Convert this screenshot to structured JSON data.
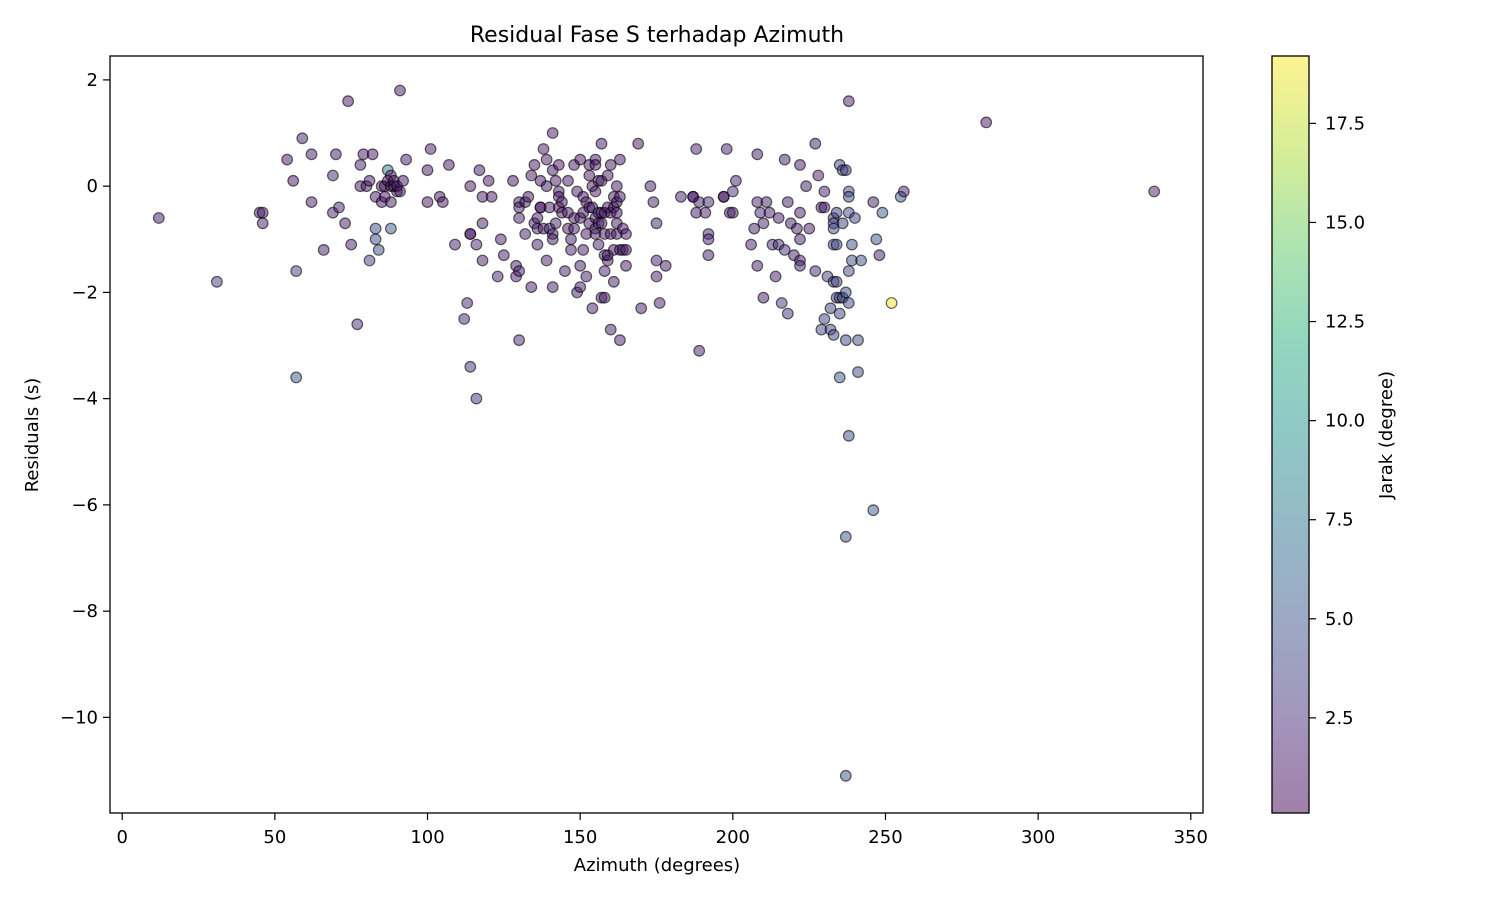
{
  "chart_data": {
    "type": "scatter",
    "title": "Residual Fase S terhadap Azimuth",
    "xlabel": "Azimuth (degrees)",
    "ylabel": "Residuals (s)",
    "xlim": [
      -4,
      354
    ],
    "ylim": [
      -11.8,
      2.45
    ],
    "x_ticks": [
      0,
      50,
      100,
      150,
      200,
      250,
      300,
      350
    ],
    "y_ticks": [
      2,
      0,
      -2,
      -4,
      -6,
      -8,
      -10
    ],
    "x_tick_labels": [
      "0",
      "50",
      "100",
      "150",
      "200",
      "250",
      "300",
      "350"
    ],
    "y_tick_labels": [
      "2",
      "0",
      "−2",
      "−4",
      "−6",
      "−8",
      "−10"
    ],
    "grid": false,
    "marker_alpha": 0.5,
    "colormap": "viridis",
    "colorbar": {
      "label": "Jarak (degree)",
      "range": [
        0.1,
        19.2
      ],
      "ticks": [
        2.5,
        5.0,
        7.5,
        10.0,
        12.5,
        15.0,
        17.5
      ],
      "tick_labels": [
        "2.5",
        "5.0",
        "7.5",
        "10.0",
        "12.5",
        "15.0",
        "17.5"
      ]
    },
    "points": [
      [
        12,
        -0.6,
        1.2
      ],
      [
        31,
        -1.8,
        3.5
      ],
      [
        45,
        -0.5,
        1.5
      ],
      [
        46,
        -0.5,
        1.5
      ],
      [
        46,
        -0.7,
        1.5
      ],
      [
        54,
        0.5,
        1.2
      ],
      [
        56,
        0.1,
        1.2
      ],
      [
        57,
        -1.6,
        3.5
      ],
      [
        57,
        -3.6,
        5.5
      ],
      [
        59,
        0.9,
        1.5
      ],
      [
        62,
        0.6,
        1.5
      ],
      [
        62,
        -0.3,
        1.5
      ],
      [
        66,
        -1.2,
        1.5
      ],
      [
        69,
        0.2,
        2.0
      ],
      [
        69,
        -0.5,
        2.0
      ],
      [
        70,
        0.6,
        1.2
      ],
      [
        71,
        -0.4,
        2.0
      ],
      [
        73,
        -0.7,
        1.5
      ],
      [
        74,
        1.6,
        1.2
      ],
      [
        75,
        -1.1,
        1.5
      ],
      [
        77,
        -2.6,
        2.5
      ],
      [
        78,
        0.4,
        1.5
      ],
      [
        78,
        0.0,
        1.2
      ],
      [
        79,
        0.6,
        1.2
      ],
      [
        80,
        0.0,
        1.2
      ],
      [
        81,
        0.1,
        1.2
      ],
      [
        81,
        -1.4,
        3.5
      ],
      [
        82,
        0.6,
        1.2
      ],
      [
        83,
        -0.2,
        1.5
      ],
      [
        83,
        -0.8,
        4.5
      ],
      [
        83,
        -1.0,
        4.5
      ],
      [
        84,
        -1.2,
        4.5
      ],
      [
        85,
        -0.3,
        1.2
      ],
      [
        85,
        0.0,
        1.2
      ],
      [
        86,
        -0.2,
        1.2
      ],
      [
        86,
        0.0,
        1.2
      ],
      [
        87,
        0.3,
        8.0
      ],
      [
        87,
        0.1,
        1.2
      ],
      [
        88,
        0.2,
        1.2
      ],
      [
        88,
        0.0,
        1.2
      ],
      [
        88,
        -0.3,
        1.2
      ],
      [
        88,
        -0.8,
        5.5
      ],
      [
        89,
        0.0,
        1.2
      ],
      [
        89,
        0.1,
        1.2
      ],
      [
        90,
        -0.1,
        1.2
      ],
      [
        90,
        0.0,
        1.2
      ],
      [
        91,
        1.8,
        1.2
      ],
      [
        91,
        -0.1,
        1.2
      ],
      [
        92,
        0.1,
        1.2
      ],
      [
        93,
        0.5,
        1.2
      ],
      [
        100,
        0.3,
        1.2
      ],
      [
        100,
        -0.3,
        1.2
      ],
      [
        101,
        0.7,
        1.2
      ],
      [
        104,
        -0.2,
        1.2
      ],
      [
        105,
        -0.3,
        1.2
      ],
      [
        107,
        0.4,
        1.2
      ],
      [
        109,
        -1.1,
        1.5
      ],
      [
        112,
        -2.5,
        2.0
      ],
      [
        113,
        -2.2,
        2.0
      ],
      [
        114,
        0.0,
        1.2
      ],
      [
        114,
        -0.9,
        1.2
      ],
      [
        114,
        -0.9,
        1.2
      ],
      [
        114,
        -3.4,
        2.5
      ],
      [
        116,
        -1.1,
        2.0
      ],
      [
        116,
        -4.0,
        2.5
      ],
      [
        117,
        0.3,
        1.2
      ],
      [
        118,
        -1.4,
        1.5
      ],
      [
        118,
        -0.7,
        1.5
      ],
      [
        118,
        -0.2,
        1.5
      ],
      [
        120,
        0.1,
        1.2
      ],
      [
        121,
        -0.2,
        1.2
      ],
      [
        123,
        -1.7,
        1.5
      ],
      [
        124,
        -1.0,
        1.5
      ],
      [
        125,
        -1.3,
        1.5
      ],
      [
        128,
        0.1,
        1.2
      ],
      [
        129,
        -1.5,
        1.5
      ],
      [
        129,
        -1.7,
        1.5
      ],
      [
        130,
        -1.6,
        1.5
      ],
      [
        130,
        -2.9,
        2.0
      ],
      [
        130,
        -0.3,
        1.5
      ],
      [
        130,
        -0.4,
        1.5
      ],
      [
        130,
        -0.6,
        1.5
      ],
      [
        132,
        -0.9,
        1.5
      ],
      [
        132,
        -0.3,
        1.5
      ],
      [
        133,
        -0.2,
        1.2
      ],
      [
        134,
        0.2,
        1.2
      ],
      [
        134,
        -1.9,
        1.5
      ],
      [
        135,
        0.4,
        1.2
      ],
      [
        135,
        -0.7,
        1.5
      ],
      [
        136,
        -1.1,
        1.5
      ],
      [
        136,
        -0.6,
        1.5
      ],
      [
        136,
        -0.8,
        1.5
      ],
      [
        137,
        0.1,
        1.2
      ],
      [
        137,
        -0.4,
        1.2
      ],
      [
        137,
        -0.4,
        1.2
      ],
      [
        138,
        0.7,
        1.2
      ],
      [
        138,
        -0.8,
        1.5
      ],
      [
        139,
        0.5,
        1.2
      ],
      [
        139,
        0.0,
        1.2
      ],
      [
        139,
        -1.4,
        1.5
      ],
      [
        140,
        -0.8,
        1.5
      ],
      [
        140,
        -0.4,
        1.5
      ],
      [
        141,
        1.0,
        1.2
      ],
      [
        141,
        0.3,
        1.2
      ],
      [
        141,
        -0.9,
        1.5
      ],
      [
        141,
        -1.0,
        1.5
      ],
      [
        141,
        -1.9,
        1.5
      ],
      [
        142,
        0.1,
        1.2
      ],
      [
        142,
        -0.7,
        1.5
      ],
      [
        143,
        0.4,
        1.2
      ],
      [
        143,
        -0.1,
        1.2
      ],
      [
        143,
        -0.2,
        1.2
      ],
      [
        143,
        -0.4,
        1.2
      ],
      [
        144,
        -0.3,
        1.2
      ],
      [
        144,
        -0.5,
        1.2
      ],
      [
        145,
        -1.6,
        1.5
      ],
      [
        146,
        0.1,
        1.2
      ],
      [
        146,
        -0.5,
        1.2
      ],
      [
        146,
        -0.8,
        1.2
      ],
      [
        147,
        -1.0,
        1.5
      ],
      [
        147,
        -1.2,
        1.5
      ],
      [
        148,
        -0.8,
        1.2
      ],
      [
        148,
        -0.6,
        1.2
      ],
      [
        148,
        0.4,
        1.2
      ],
      [
        149,
        -2.0,
        1.5
      ],
      [
        149,
        -0.1,
        1.2
      ],
      [
        150,
        0.5,
        1.2
      ],
      [
        150,
        -0.6,
        1.2
      ],
      [
        150,
        -1.5,
        1.5
      ],
      [
        150,
        -1.9,
        1.5
      ],
      [
        151,
        -0.2,
        1.2
      ],
      [
        151,
        -0.5,
        1.2
      ],
      [
        151,
        -1.2,
        1.5
      ],
      [
        152,
        -0.3,
        1.2
      ],
      [
        152,
        -0.9,
        1.2
      ],
      [
        152,
        -1.7,
        1.5
      ],
      [
        153,
        0.4,
        1.2
      ],
      [
        153,
        0.2,
        1.2
      ],
      [
        153,
        -0.4,
        1.2
      ],
      [
        153,
        -0.7,
        1.2
      ],
      [
        154,
        0.0,
        1.2
      ],
      [
        154,
        -0.4,
        1.2
      ],
      [
        154,
        -2.3,
        1.5
      ],
      [
        155,
        0.5,
        1.2
      ],
      [
        155,
        0.4,
        1.2
      ],
      [
        155,
        -0.1,
        1.2
      ],
      [
        155,
        -0.6,
        1.2
      ],
      [
        155,
        -0.8,
        1.2
      ],
      [
        155,
        -0.9,
        1.2
      ],
      [
        156,
        0.1,
        1.2
      ],
      [
        156,
        -0.5,
        1.2
      ],
      [
        156,
        -0.7,
        1.2
      ],
      [
        156,
        -1.1,
        1.5
      ],
      [
        157,
        0.8,
        1.2
      ],
      [
        157,
        0.1,
        1.2
      ],
      [
        157,
        -0.5,
        1.2
      ],
      [
        157,
        -0.7,
        1.2
      ],
      [
        157,
        -2.1,
        1.5
      ],
      [
        158,
        -1.6,
        1.5
      ],
      [
        158,
        -2.1,
        1.5
      ],
      [
        158,
        -1.3,
        1.2
      ],
      [
        158,
        -0.5,
        1.2
      ],
      [
        158,
        -0.9,
        1.2
      ],
      [
        159,
        0.2,
        1.2
      ],
      [
        159,
        -0.4,
        1.2
      ],
      [
        159,
        -1.4,
        1.2
      ],
      [
        159,
        -1.3,
        1.2
      ],
      [
        160,
        0.4,
        1.2
      ],
      [
        160,
        -0.5,
        1.2
      ],
      [
        160,
        -0.9,
        1.2
      ],
      [
        160,
        -2.7,
        1.5
      ],
      [
        161,
        -0.2,
        1.2
      ],
      [
        161,
        -0.4,
        1.2
      ],
      [
        161,
        -1.8,
        1.5
      ],
      [
        161,
        -1.2,
        1.2
      ],
      [
        162,
        -0.3,
        1.2
      ],
      [
        162,
        -0.5,
        1.2
      ],
      [
        162,
        0.0,
        1.2
      ],
      [
        162,
        -0.7,
        1.2
      ],
      [
        162,
        -0.9,
        1.2
      ],
      [
        163,
        0.5,
        1.2
      ],
      [
        163,
        -0.2,
        1.2
      ],
      [
        163,
        -1.2,
        1.2
      ],
      [
        163,
        -2.9,
        1.5
      ],
      [
        164,
        -0.8,
        1.2
      ],
      [
        164,
        -1.2,
        1.2
      ],
      [
        165,
        -0.9,
        1.2
      ],
      [
        165,
        -1.2,
        1.2
      ],
      [
        165,
        -1.5,
        1.2
      ],
      [
        169,
        0.8,
        1.2
      ],
      [
        170,
        -2.3,
        1.5
      ],
      [
        173,
        0.0,
        1.5
      ],
      [
        174,
        -0.3,
        1.5
      ],
      [
        175,
        -0.7,
        1.5
      ],
      [
        175,
        -1.4,
        1.5
      ],
      [
        175,
        -1.7,
        1.5
      ],
      [
        176,
        -2.2,
        1.5
      ],
      [
        178,
        -1.5,
        1.5
      ],
      [
        183,
        -0.2,
        1.5
      ],
      [
        187,
        -0.2,
        1.2
      ],
      [
        187,
        -0.2,
        1.2
      ],
      [
        188,
        0.7,
        1.5
      ],
      [
        188,
        -0.5,
        1.5
      ],
      [
        189,
        -0.3,
        1.5
      ],
      [
        189,
        -3.1,
        1.5
      ],
      [
        191,
        -0.5,
        1.5
      ],
      [
        192,
        -0.3,
        2.0
      ],
      [
        192,
        -0.9,
        2.0
      ],
      [
        192,
        -1.0,
        2.0
      ],
      [
        192,
        -1.3,
        1.5
      ],
      [
        197,
        -0.2,
        1.2
      ],
      [
        197,
        -0.2,
        1.2
      ],
      [
        198,
        0.7,
        1.5
      ],
      [
        199,
        -0.5,
        1.2
      ],
      [
        200,
        -0.5,
        1.5
      ],
      [
        200,
        -0.1,
        2.5
      ],
      [
        201,
        0.1,
        1.5
      ],
      [
        206,
        -1.1,
        1.5
      ],
      [
        207,
        -0.8,
        1.5
      ],
      [
        208,
        0.6,
        1.5
      ],
      [
        208,
        -0.3,
        2.0
      ],
      [
        208,
        -1.5,
        1.5
      ],
      [
        209,
        -0.5,
        2.0
      ],
      [
        210,
        -0.7,
        2.0
      ],
      [
        210,
        -2.1,
        1.5
      ],
      [
        211,
        -0.3,
        1.5
      ],
      [
        212,
        -0.5,
        1.5
      ],
      [
        213,
        -1.1,
        2.0
      ],
      [
        214,
        -1.7,
        1.5
      ],
      [
        215,
        -0.6,
        1.5
      ],
      [
        215,
        -1.1,
        2.5
      ],
      [
        216,
        -2.2,
        3.0
      ],
      [
        217,
        0.5,
        1.5
      ],
      [
        217,
        -1.2,
        2.5
      ],
      [
        218,
        -2.4,
        3.0
      ],
      [
        218,
        -0.3,
        1.5
      ],
      [
        219,
        -0.7,
        1.5
      ],
      [
        220,
        -1.3,
        1.5
      ],
      [
        221,
        -0.8,
        1.5
      ],
      [
        222,
        0.4,
        1.5
      ],
      [
        222,
        -0.5,
        1.5
      ],
      [
        222,
        -1.0,
        1.5
      ],
      [
        222,
        -1.4,
        1.5
      ],
      [
        222,
        -1.5,
        2.0
      ],
      [
        224,
        0.0,
        1.5
      ],
      [
        225,
        -0.8,
        1.5
      ],
      [
        227,
        0.8,
        1.5
      ],
      [
        227,
        -1.6,
        2.0
      ],
      [
        228,
        0.2,
        1.5
      ],
      [
        229,
        -0.4,
        1.5
      ],
      [
        229,
        -2.7,
        4.0
      ],
      [
        230,
        -0.1,
        1.5
      ],
      [
        230,
        -0.4,
        1.5
      ],
      [
        230,
        -2.5,
        3.5
      ],
      [
        231,
        -1.7,
        3.5
      ],
      [
        232,
        -2.3,
        4.0
      ],
      [
        232,
        -2.7,
        4.0
      ],
      [
        233,
        -0.6,
        3.0
      ],
      [
        233,
        -0.7,
        4.0
      ],
      [
        233,
        -0.8,
        4.0
      ],
      [
        233,
        -1.1,
        4.0
      ],
      [
        233,
        -1.8,
        4.0
      ],
      [
        233,
        -2.8,
        4.0
      ],
      [
        234,
        -1.1,
        4.0
      ],
      [
        234,
        -1.8,
        4.0
      ],
      [
        234,
        -2.1,
        4.0
      ],
      [
        234,
        -0.5,
        3.0
      ],
      [
        235,
        0.4,
        4.0
      ],
      [
        235,
        -2.1,
        4.0
      ],
      [
        235,
        -2.4,
        4.0
      ],
      [
        235,
        -3.6,
        5.5
      ],
      [
        236,
        0.3,
        4.0
      ],
      [
        236,
        -0.7,
        3.5
      ],
      [
        236,
        -2.1,
        4.0
      ],
      [
        237,
        0.3,
        3.0
      ],
      [
        237,
        -2.0,
        4.5
      ],
      [
        237,
        -2.9,
        4.0
      ],
      [
        237,
        -6.6,
        5.0
      ],
      [
        237,
        -11.1,
        5.0
      ],
      [
        238,
        1.6,
        1.5
      ],
      [
        238,
        -0.1,
        4.5
      ],
      [
        238,
        -0.2,
        4.5
      ],
      [
        238,
        -0.5,
        4.0
      ],
      [
        238,
        -1.6,
        4.5
      ],
      [
        238,
        -2.2,
        4.0
      ],
      [
        238,
        -4.7,
        4.5
      ],
      [
        239,
        -1.1,
        4.5
      ],
      [
        239,
        -1.4,
        4.5
      ],
      [
        240,
        -0.6,
        4.0
      ],
      [
        241,
        -2.9,
        4.5
      ],
      [
        241,
        -3.5,
        4.5
      ],
      [
        242,
        -1.4,
        4.5
      ],
      [
        246,
        -0.3,
        1.5
      ],
      [
        246,
        -6.1,
        5.5
      ],
      [
        247,
        -1.0,
        5.0
      ],
      [
        248,
        -1.3,
        1.5
      ],
      [
        249,
        -0.5,
        5.5
      ],
      [
        252,
        -2.2,
        19.0
      ],
      [
        255,
        -0.2,
        5.5
      ],
      [
        256,
        -0.1,
        1.5
      ],
      [
        283,
        1.2,
        1.2
      ],
      [
        338,
        -0.1,
        1.5
      ]
    ]
  }
}
